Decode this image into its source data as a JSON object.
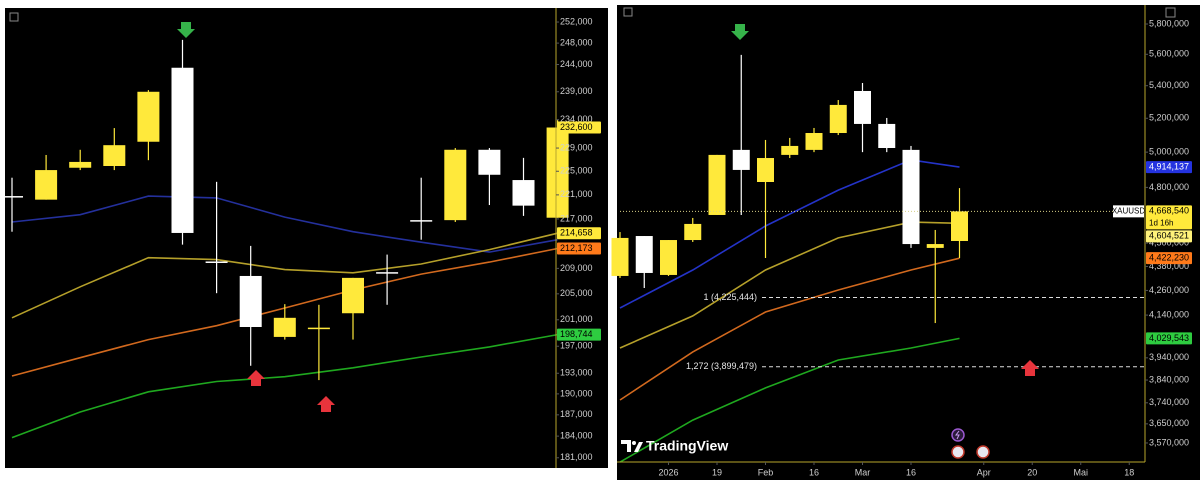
{
  "chart_data": [
    {
      "type": "candlestick",
      "log_scale": true,
      "up_color": "#ffe93b",
      "down_color": "#ffffff",
      "open": [
        220800,
        220200,
        225600,
        225900,
        230100,
        243400,
        210100,
        207800,
        198400,
        199800,
        202000,
        208400,
        216800,
        216800,
        228700,
        223500,
        217200
      ],
      "high": [
        223900,
        227800,
        228700,
        232500,
        239300,
        248600,
        223200,
        212600,
        203400,
        203300,
        207500,
        211200,
        223900,
        229000,
        229000,
        227300,
        233900
      ],
      "low": [
        214900,
        220200,
        225200,
        225200,
        226900,
        212800,
        205100,
        194100,
        198000,
        192000,
        198000,
        203300,
        213600,
        216500,
        219300,
        217500,
        217200
      ],
      "close": [
        220700,
        225200,
        226600,
        229500,
        239000,
        214700,
        210000,
        199900,
        201300,
        199800,
        207500,
        208300,
        216700,
        228700,
        224400,
        219200,
        232600
      ],
      "series": [
        {
          "color": "#24309c",
          "x": [
            0,
            2,
            4,
            6,
            8,
            10,
            12,
            14,
            16
          ],
          "values": [
            216500,
            217700,
            220800,
            220500,
            217300,
            214900,
            213200,
            211600,
            213600
          ]
        },
        {
          "color": "#b5a02a",
          "x": [
            0,
            2,
            4,
            6,
            8,
            10,
            12,
            14,
            16
          ],
          "values": [
            201300,
            206100,
            210700,
            210400,
            208800,
            208300,
            209700,
            212000,
            214658
          ]
        },
        {
          "color": "#d2691e",
          "x": [
            0,
            2,
            4,
            6,
            8,
            10,
            12,
            14,
            16
          ],
          "values": [
            192600,
            195300,
            198000,
            200100,
            202800,
            205600,
            208100,
            210000,
            212173
          ]
        },
        {
          "color": "#1fa81f",
          "x": [
            0,
            2,
            4,
            6,
            8,
            10,
            12,
            14,
            16
          ],
          "values": [
            183800,
            187400,
            190300,
            191800,
            192500,
            193800,
            195400,
            196900,
            198744
          ]
        }
      ],
      "ylim": [
        179600,
        254700
      ],
      "yticks": [
        {
          "value": 252000,
          "label": "252,000"
        },
        {
          "value": 248000,
          "label": "248,000"
        },
        {
          "value": 244000,
          "label": "244,000"
        },
        {
          "value": 239000,
          "label": "239,000"
        },
        {
          "value": 234000,
          "label": "234,000"
        },
        {
          "value": 229000,
          "label": "229,000"
        },
        {
          "value": 225000,
          "label": "225,000"
        },
        {
          "value": 221000,
          "label": "221,000"
        },
        {
          "value": 217000,
          "label": "217,000"
        },
        {
          "value": 209000,
          "label": "209,000"
        },
        {
          "value": 205000,
          "label": "205,000"
        },
        {
          "value": 201000,
          "label": "201,000"
        },
        {
          "value": 197000,
          "label": "197,000"
        },
        {
          "value": 193000,
          "label": "193,000"
        },
        {
          "value": 190000,
          "label": "190,000"
        },
        {
          "value": 187000,
          "label": "187,000"
        },
        {
          "value": 184000,
          "label": "184,000"
        },
        {
          "value": 181000,
          "label": "181,000"
        }
      ],
      "price_labels": [
        {
          "value": 232600,
          "label": "232,600",
          "color": "#ffe93b",
          "text_color": "#000000"
        },
        {
          "value": 214658,
          "label": "214,658",
          "color": "#ffe93b",
          "text_color": "#000000"
        },
        {
          "value": 212173,
          "label": "212,173",
          "color": "#ff7a1a",
          "text_color": "#000000"
        },
        {
          "value": 198744,
          "label": "198,744",
          "color": "#2ecc40",
          "text_color": "#000000"
        }
      ]
    },
    {
      "type": "candlestick",
      "log_scale": true,
      "up_color": "#ffe93b",
      "down_color": "#ffffff",
      "open": [
        4332000,
        4537000,
        4337000,
        4516000,
        4649000,
        5013000,
        4830000,
        4984000,
        5013000,
        5112000,
        5367000,
        5166000,
        5013000,
        4475000,
        4511000
      ],
      "high": [
        4558000,
        4537000,
        4516000,
        4633000,
        4984000,
        5596000,
        5071000,
        5083000,
        5142000,
        5311000,
        5417000,
        5202000,
        5036000,
        4569000,
        4796000
      ],
      "low": [
        4322000,
        4272000,
        4332000,
        4506000,
        4649000,
        4649000,
        4423000,
        4966000,
        5000000,
        5100000,
        5000000,
        5000000,
        4475000,
        4102000,
        4423000
      ],
      "close": [
        4527000,
        4347000,
        4516000,
        4601000,
        4984000,
        4898000,
        4966000,
        5036000,
        5112000,
        5281000,
        5166000,
        5024000,
        4495000,
        4495000,
        4668540
      ],
      "series": [
        {
          "color": "#2433c8",
          "x": [
            0,
            3,
            6,
            9,
            12,
            14
          ],
          "values": [
            4174000,
            4362000,
            4590000,
            4785000,
            4955000,
            4914137
          ]
        },
        {
          "color": "#b5a02a",
          "x": [
            0,
            3,
            6,
            9,
            12,
            14
          ],
          "values": [
            3985000,
            4136000,
            4362000,
            4527000,
            4611000,
            4604521
          ]
        },
        {
          "color": "#d2691e",
          "x": [
            0,
            3,
            6,
            9,
            12,
            14
          ],
          "values": [
            3752000,
            3967000,
            4155000,
            4262000,
            4362000,
            4422230
          ]
        },
        {
          "color": "#1fa81f",
          "x": [
            0,
            3,
            6,
            9,
            12,
            14
          ],
          "values": [
            3492000,
            3666000,
            3805000,
            3930000,
            3985000,
            4029543
          ]
        }
      ],
      "ylim": [
        3460000,
        5929000
      ],
      "yticks": [
        {
          "value": 5800000,
          "label": "5,800,000"
        },
        {
          "value": 5600000,
          "label": "5,600,000"
        },
        {
          "value": 5400000,
          "label": "5,400,000"
        },
        {
          "value": 5200000,
          "label": "5,200,000"
        },
        {
          "value": 5000000,
          "label": "5,000,000"
        },
        {
          "value": 4800000,
          "label": "4,800,000"
        },
        {
          "value": 4500000,
          "label": "4,500,000"
        },
        {
          "value": 4380000,
          "label": "4,380,000"
        },
        {
          "value": 4260000,
          "label": "4,260,000"
        },
        {
          "value": 4140000,
          "label": "4,140,000"
        },
        {
          "value": 3940000,
          "label": "3,940,000"
        },
        {
          "value": 3840000,
          "label": "3,840,000"
        },
        {
          "value": 3740000,
          "label": "3,740,000"
        },
        {
          "value": 3650000,
          "label": "3,650,000"
        },
        {
          "value": 3570000,
          "label": "3,570,000"
        }
      ],
      "xticks": [
        {
          "value": 2,
          "label": "2026"
        },
        {
          "value": 4,
          "label": "19"
        },
        {
          "value": 6,
          "label": "Feb"
        },
        {
          "value": 8,
          "label": "16"
        },
        {
          "value": 10,
          "label": "Mar"
        },
        {
          "value": 12,
          "label": "16"
        },
        {
          "value": 15,
          "label": "Apr"
        },
        {
          "value": 17,
          "label": "20"
        },
        {
          "value": 19,
          "label": "Mai"
        },
        {
          "value": 21,
          "label": "18"
        }
      ],
      "current_price_line": true,
      "symbol": "XAUUSD",
      "countdown": "1d 16h",
      "levels": [
        {
          "value": 4225444,
          "label": "1 (4,225,444)"
        },
        {
          "value": 3899479,
          "label": "1,272 (3,899,479)"
        }
      ],
      "price_labels": [
        {
          "value": 4914137,
          "label": "4,914,137",
          "color": "#2433e0",
          "text_color": "#ffffff"
        },
        {
          "value": 4668540,
          "label": "4,668,540",
          "color": "#ffe93b",
          "text_color": "#000000"
        },
        {
          "value": 4604521,
          "label": "4,604,521",
          "color": "#fff27a",
          "text_color": "#000000"
        },
        {
          "value": 4422230,
          "label": "4,422,230",
          "color": "#ff7a1a",
          "text_color": "#000000"
        },
        {
          "value": 4029543,
          "label": "4,029,543",
          "color": "#2ecc40",
          "text_color": "#000000"
        }
      ],
      "watermark": "TradingView"
    }
  ]
}
